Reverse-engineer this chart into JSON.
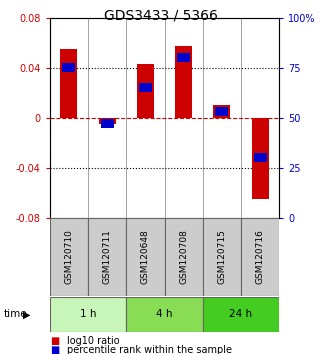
{
  "title": "GDS3433 / 5366",
  "samples": [
    "GSM120710",
    "GSM120711",
    "GSM120648",
    "GSM120708",
    "GSM120715",
    "GSM120716"
  ],
  "log10_ratio": [
    0.055,
    -0.005,
    0.043,
    0.057,
    0.01,
    -0.065
  ],
  "percentile_rank": [
    75,
    47,
    65,
    80,
    53,
    30
  ],
  "ylim_left": [
    -0.08,
    0.08
  ],
  "ylim_right": [
    0,
    100
  ],
  "yticks_left": [
    -0.08,
    -0.04,
    0,
    0.04,
    0.08
  ],
  "yticks_right": [
    0,
    25,
    50,
    75,
    100
  ],
  "ytick_labels_right": [
    "0",
    "25",
    "50",
    "75",
    "100%"
  ],
  "groups": [
    {
      "label": "1 h",
      "samples": [
        0,
        1
      ],
      "color": "#c8f5b8"
    },
    {
      "label": "4 h",
      "samples": [
        2,
        3
      ],
      "color": "#88dd55"
    },
    {
      "label": "24 h",
      "samples": [
        4,
        5
      ],
      "color": "#44cc22"
    }
  ],
  "bar_color": "#cc0000",
  "percentile_color": "#0000cc",
  "bar_width": 0.45,
  "grid_color": "#000000",
  "zero_line_color": "#cc0000",
  "bg_color": "#ffffff",
  "plot_bg_color": "#ffffff",
  "sample_box_color": "#cccccc",
  "sample_box_edge": "#666666",
  "title_fontsize": 10,
  "tick_fontsize": 7,
  "label_fontsize": 7.5,
  "legend_fontsize": 7,
  "sample_fontsize": 6.5
}
